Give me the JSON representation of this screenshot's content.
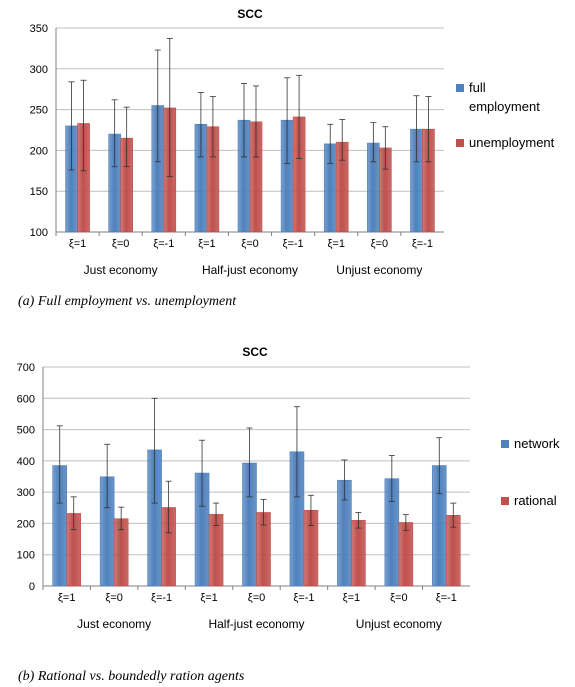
{
  "captions": {
    "a": "(a)  Full employment vs. unemployment",
    "b": "(b)  Rational vs. boundedly ration agents"
  },
  "chart_data": [
    {
      "type": "bar",
      "title": "SCC",
      "xlabel": "",
      "ylabel": "",
      "ylim": [
        100,
        350
      ],
      "yticks": [
        100,
        150,
        200,
        250,
        300,
        350
      ],
      "categories": [
        "ξ=1",
        "ξ=0",
        "ξ=-1",
        "ξ=1",
        "ξ=0",
        "ξ=-1",
        "ξ=1",
        "ξ=0",
        "ξ=-1"
      ],
      "groups": [
        "Just economy",
        "Half-just economy",
        "Unjust economy"
      ],
      "grid": true,
      "error_bars": true,
      "legend_position": "right",
      "colors": [
        "#4f81bd",
        "#c0504d"
      ],
      "series": [
        {
          "name": "full employment",
          "legend_lines": [
            "full",
            "employment"
          ],
          "values": [
            230,
            220,
            255,
            232,
            237,
            237,
            208,
            209,
            226
          ],
          "err_low": [
            176,
            180,
            186,
            192,
            192,
            184,
            184,
            186,
            186
          ],
          "err_high": [
            284,
            262,
            323,
            271,
            282,
            289,
            232,
            234,
            267
          ]
        },
        {
          "name": "unemployment",
          "legend_lines": [
            "unemployment"
          ],
          "values": [
            233,
            215,
            252,
            229,
            235,
            241,
            210,
            203,
            226
          ],
          "err_low": [
            175,
            180,
            168,
            192,
            192,
            190,
            188,
            177,
            186
          ],
          "err_high": [
            286,
            253,
            337,
            266,
            279,
            292,
            238,
            229,
            266
          ]
        }
      ]
    },
    {
      "type": "bar",
      "title": "SCC",
      "xlabel": "",
      "ylabel": "",
      "ylim": [
        0,
        700
      ],
      "yticks": [
        0,
        100,
        200,
        300,
        400,
        500,
        600,
        700
      ],
      "categories": [
        "ξ=1",
        "ξ=0",
        "ξ=-1",
        "ξ=1",
        "ξ=0",
        "ξ=-1",
        "ξ=1",
        "ξ=0",
        "ξ=-1"
      ],
      "groups": [
        "Just economy",
        "Half-just economy",
        "Unjust economy"
      ],
      "grid": true,
      "error_bars": true,
      "legend_position": "right",
      "colors": [
        "#4f81bd",
        "#c0504d"
      ],
      "series": [
        {
          "name": "network",
          "legend_lines": [
            "network"
          ],
          "values": [
            385,
            349,
            435,
            361,
            393,
            429,
            338,
            343,
            385
          ],
          "err_low": [
            265,
            250,
            265,
            255,
            285,
            285,
            275,
            270,
            295
          ],
          "err_high": [
            512,
            453,
            600,
            466,
            505,
            573,
            403,
            417,
            474
          ]
        },
        {
          "name": "rational",
          "legend_lines": [
            "rational"
          ],
          "values": [
            232,
            215,
            251,
            229,
            235,
            242,
            210,
            203,
            226
          ],
          "err_low": [
            180,
            180,
            170,
            193,
            195,
            193,
            185,
            178,
            188
          ],
          "err_high": [
            285,
            252,
            335,
            265,
            277,
            290,
            235,
            228,
            265
          ]
        }
      ]
    }
  ]
}
